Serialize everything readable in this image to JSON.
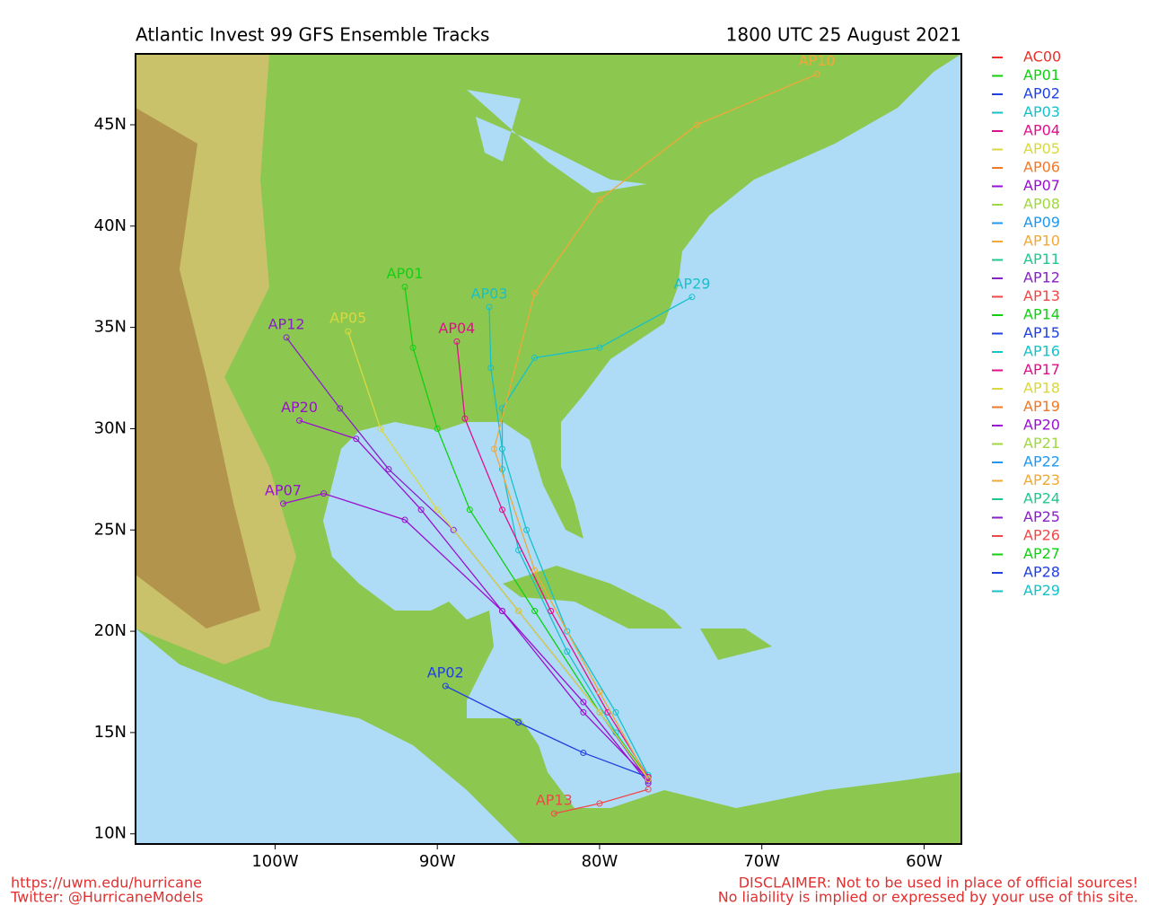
{
  "chart_data": {
    "type": "track-map",
    "title": "Atlantic Invest 99 GFS Ensemble Tracks",
    "subtitle": "1800 UTC 25 August 2021",
    "xlim": [
      -108.6,
      -57.7
    ],
    "ylim": [
      9.5,
      48.5
    ],
    "xticks": [
      {
        "value": -100,
        "label": "100W"
      },
      {
        "value": -90,
        "label": "90W"
      },
      {
        "value": -80,
        "label": "80W"
      },
      {
        "value": -70,
        "label": "70W"
      },
      {
        "value": -60,
        "label": "60W"
      }
    ],
    "yticks": [
      {
        "value": 10,
        "label": "10N"
      },
      {
        "value": 15,
        "label": "15N"
      },
      {
        "value": 20,
        "label": "20N"
      },
      {
        "value": 25,
        "label": "25N"
      },
      {
        "value": 30,
        "label": "30N"
      },
      {
        "value": 35,
        "label": "35N"
      },
      {
        "value": 40,
        "label": "40N"
      },
      {
        "value": 45,
        "label": "45N"
      }
    ],
    "legend": [
      {
        "name": "AC00",
        "color": "#e8302a"
      },
      {
        "name": "AP01",
        "color": "#10d010"
      },
      {
        "name": "AP02",
        "color": "#2040e0"
      },
      {
        "name": "AP03",
        "color": "#18c0c8"
      },
      {
        "name": "AP04",
        "color": "#e0108a"
      },
      {
        "name": "AP05",
        "color": "#d8d840"
      },
      {
        "name": "AP06",
        "color": "#f07828"
      },
      {
        "name": "AP07",
        "color": "#9a10d0"
      },
      {
        "name": "AP08",
        "color": "#a0d840"
      },
      {
        "name": "AP09",
        "color": "#2098f0"
      },
      {
        "name": "AP10",
        "color": "#f0a838"
      },
      {
        "name": "AP11",
        "color": "#20c890"
      },
      {
        "name": "AP12",
        "color": "#8820c8"
      },
      {
        "name": "AP13",
        "color": "#f04848"
      },
      {
        "name": "AP14",
        "color": "#10d010"
      },
      {
        "name": "AP15",
        "color": "#2040e0"
      },
      {
        "name": "AP16",
        "color": "#18c0c8"
      },
      {
        "name": "AP17",
        "color": "#e0108a"
      },
      {
        "name": "AP18",
        "color": "#d8d840"
      },
      {
        "name": "AP19",
        "color": "#f07828"
      },
      {
        "name": "AP20",
        "color": "#9a10d0"
      },
      {
        "name": "AP21",
        "color": "#a0d840"
      },
      {
        "name": "AP22",
        "color": "#2098f0"
      },
      {
        "name": "AP23",
        "color": "#f0a838"
      },
      {
        "name": "AP24",
        "color": "#20c890"
      },
      {
        "name": "AP25",
        "color": "#8820c8"
      },
      {
        "name": "AP26",
        "color": "#f04848"
      },
      {
        "name": "AP27",
        "color": "#10d010"
      },
      {
        "name": "AP28",
        "color": "#2040e0"
      },
      {
        "name": "AP29",
        "color": "#18c0c8"
      }
    ],
    "tracks": [
      {
        "name": "AP29",
        "color": "#18c0c8",
        "lon": [
          -77,
          -79,
          -82,
          -85,
          -86,
          -86,
          -84,
          -80,
          -74.3
        ],
        "lat": [
          12.7,
          15,
          19,
          24,
          28,
          31,
          33.5,
          34,
          36.5
        ]
      },
      {
        "name": "AP01",
        "color": "#10d010",
        "lon": [
          -77,
          -80,
          -84,
          -88,
          -90,
          -91.5,
          -92
        ],
        "lat": [
          12.8,
          16,
          21,
          26,
          30,
          34,
          37
        ]
      },
      {
        "name": "AP12",
        "color": "#8820c8",
        "lon": [
          -77,
          -80,
          -85,
          -89,
          -93,
          -96,
          -99.3
        ],
        "lat": [
          12.6,
          16,
          21,
          25,
          28,
          31,
          34.5
        ]
      },
      {
        "name": "AP20",
        "color": "#9a10d0",
        "lon": [
          -77,
          -81,
          -86,
          -91,
          -95,
          -98.5
        ],
        "lat": [
          12.7,
          16,
          21,
          26,
          29.5,
          30.4
        ]
      },
      {
        "name": "AP07",
        "color": "#9a10d0",
        "lon": [
          -77,
          -81,
          -86,
          -92,
          -97,
          -99.5
        ],
        "lat": [
          12.5,
          16.5,
          21,
          25.5,
          26.8,
          26.3
        ]
      },
      {
        "name": "AP13",
        "color": "#f04848",
        "lon": [
          -77,
          -80,
          -82.8
        ],
        "lat": [
          12.2,
          11.5,
          11
        ]
      },
      {
        "name": "AP02",
        "color": "#2040e0",
        "lon": [
          -77,
          -81,
          -85,
          -89.5
        ],
        "lat": [
          12.8,
          14,
          15.5,
          17.3
        ]
      },
      {
        "name": "AP03",
        "color": "#18c0c8",
        "lon": [
          -77,
          -79,
          -82,
          -84.5,
          -86,
          -86.7,
          -86.8
        ],
        "lat": [
          12.9,
          16,
          20,
          25,
          29,
          33,
          36
        ]
      },
      {
        "name": "AP04",
        "color": "#e0108a",
        "lon": [
          -77,
          -79.5,
          -83,
          -86,
          -88.3,
          -88.8
        ],
        "lat": [
          12.8,
          16,
          21,
          26,
          30.5,
          34.3
        ]
      },
      {
        "name": "AP05",
        "color": "#d8d840",
        "lon": [
          -77,
          -80,
          -85,
          -90,
          -93.5,
          -95.5
        ],
        "lat": [
          12.7,
          16,
          21,
          26,
          30,
          34.8
        ]
      },
      {
        "name": "AP10",
        "color": "#f0a838",
        "lon": [
          -77,
          -80,
          -84,
          -86.5,
          -84,
          -80,
          -74,
          -66.6
        ],
        "lat": [
          12.7,
          17,
          23,
          29,
          36.7,
          41.3,
          45,
          47.5
        ]
      }
    ],
    "footer_left": [
      "https://uwm.edu/hurricane",
      "Twitter: @HurricaneModels"
    ],
    "footer_right": [
      "DISCLAIMER: Not to be used in place of official sources!",
      "No liability is implied or expressed by your use of this site."
    ]
  }
}
